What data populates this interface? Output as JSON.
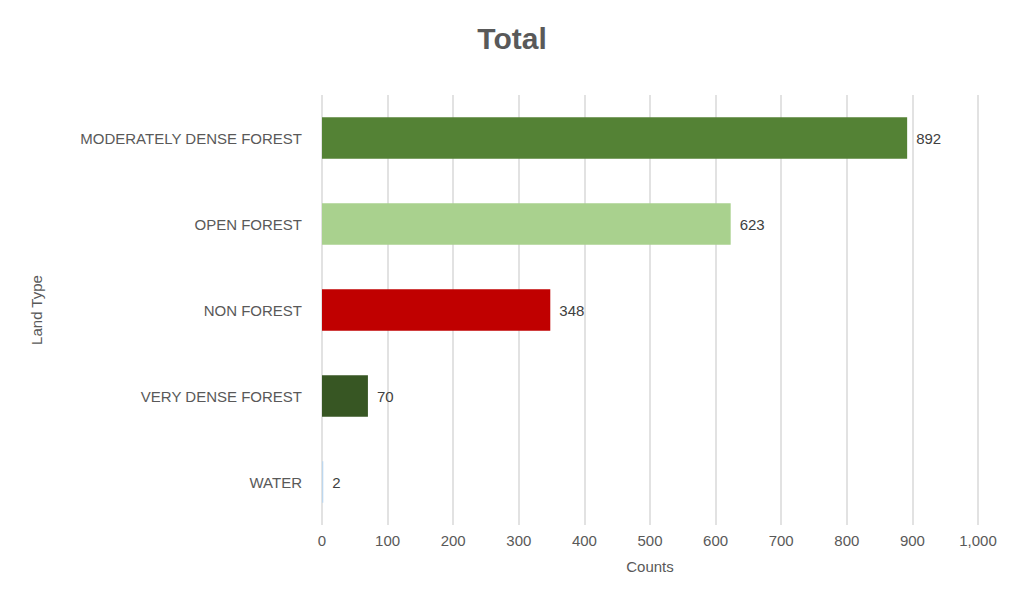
{
  "chart_data": {
    "type": "bar",
    "title": "Total",
    "orientation": "horizontal",
    "x_label": "Counts",
    "y_label": "Land Type",
    "categories": [
      "MODERATELY DENSE FOREST",
      "OPEN FOREST",
      "NON FOREST",
      "VERY DENSE FOREST",
      "WATER"
    ],
    "values": [
      892,
      623,
      348,
      70,
      2
    ],
    "colors": [
      "#548235",
      "#a9d18e",
      "#c00000",
      "#375623",
      "#bdd7ee"
    ],
    "xlim": [
      0,
      1000
    ],
    "xticks": [
      0,
      100,
      200,
      300,
      400,
      500,
      600,
      700,
      800,
      900,
      1000
    ],
    "grid": true,
    "data_labels": true
  }
}
